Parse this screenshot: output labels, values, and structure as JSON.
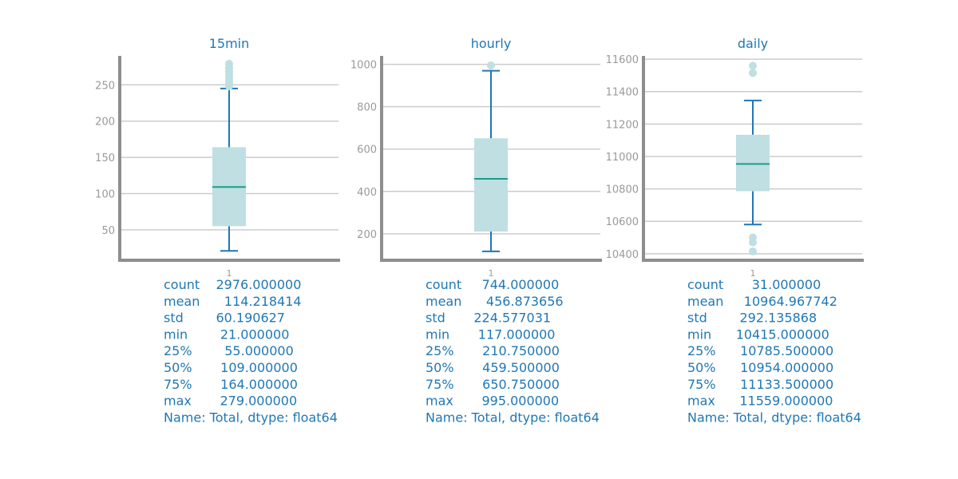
{
  "colors": {
    "line": "#1f77b4",
    "box_fill": "#bfdfe2",
    "median": "#1a9e8a",
    "outlier": "#bfdfe2",
    "grid": "#cccccc",
    "axis": "#8e8e8e",
    "tick_text": "#9a9a9a",
    "title": "#1f77b4"
  },
  "chart_data": [
    {
      "type": "box",
      "title": "15min",
      "xticks": [
        "1"
      ],
      "ylim": [
        8,
        290
      ],
      "yticks": [
        "50",
        "100",
        "150",
        "200",
        "250"
      ],
      "grid": true,
      "box": {
        "whisker_low": 21,
        "q1": 55,
        "median": 109,
        "q3": 164,
        "whisker_high": 245,
        "outliers": [
          248,
          251,
          255,
          259,
          263,
          268,
          273,
          279
        ]
      },
      "stats": [
        "count    2976.000000",
        "mean      114.218414",
        "std        60.190627",
        "min        21.000000",
        "25%        55.000000",
        "50%       109.000000",
        "75%       164.000000",
        "max       279.000000",
        "Name: Total, dtype: float64"
      ]
    },
    {
      "type": "box",
      "title": "hourly",
      "xticks": [
        "1"
      ],
      "ylim": [
        75,
        1040
      ],
      "yticks": [
        "200",
        "400",
        "600",
        "800",
        "1000"
      ],
      "grid": true,
      "box": {
        "whisker_low": 117,
        "q1": 210.75,
        "median": 459.5,
        "q3": 650.75,
        "whisker_high": 970,
        "outliers": [
          995
        ]
      },
      "stats": [
        "count     744.000000",
        "mean      456.873656",
        "std       224.577031",
        "min       117.000000",
        "25%       210.750000",
        "50%       459.500000",
        "75%       650.750000",
        "max       995.000000",
        "Name: Total, dtype: float64"
      ]
    },
    {
      "type": "box",
      "title": "daily",
      "xticks": [
        "1"
      ],
      "ylim": [
        10360,
        11620
      ],
      "yticks": [
        "10400",
        "10600",
        "10800",
        "11000",
        "11200",
        "11400",
        "11600"
      ],
      "grid": true,
      "box": {
        "whisker_low": 10580,
        "q1": 10785.5,
        "median": 10954,
        "q3": 11133.5,
        "whisker_high": 11345,
        "outliers": [
          10415,
          10470,
          10500,
          11515,
          11559
        ]
      },
      "stats": [
        "count       31.000000",
        "mean     10964.967742",
        "std        292.135868",
        "min      10415.000000",
        "25%      10785.500000",
        "50%      10954.000000",
        "75%      11133.500000",
        "max      11559.000000",
        "Name: Total, dtype: float64"
      ]
    }
  ]
}
